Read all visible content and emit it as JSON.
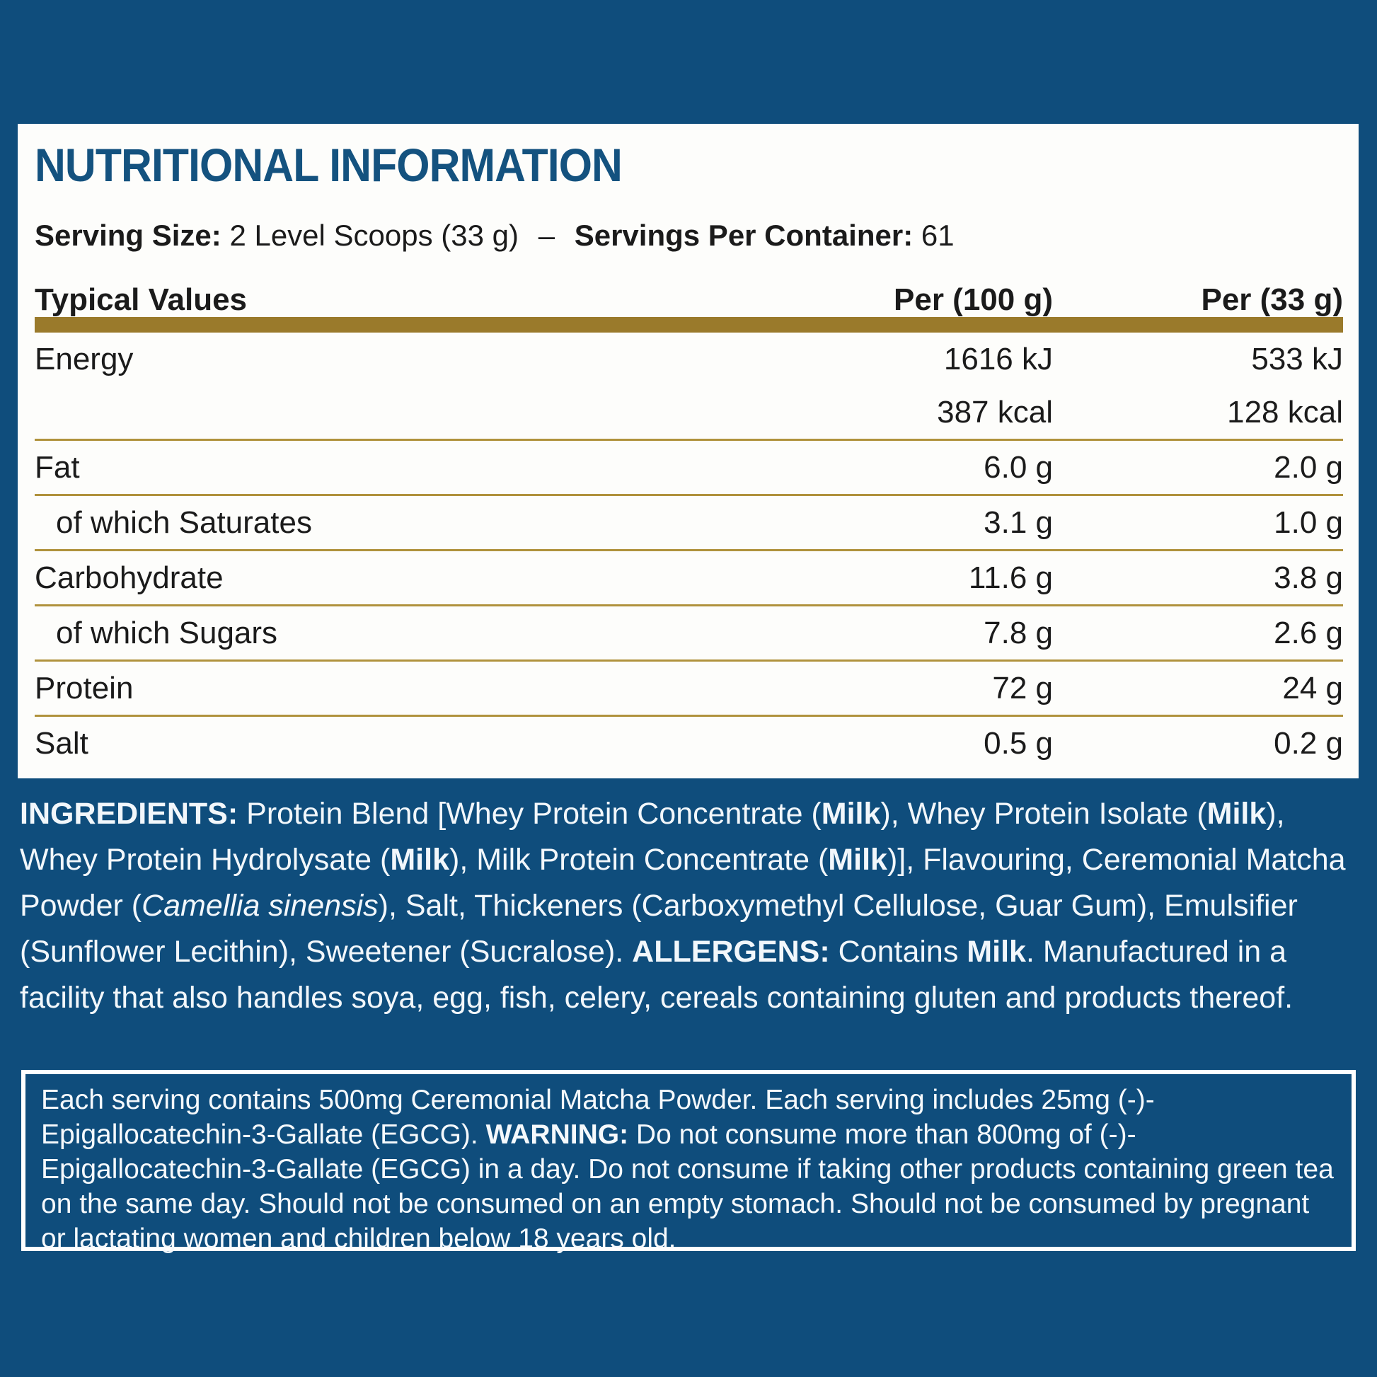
{
  "colors": {
    "page_background": "#0F4D7C",
    "panel_background": "#FDFDFB",
    "heading_blue": "#14527F",
    "gold_bar": "#9A7A2B",
    "gold_rule": "#B0923C",
    "text_dark": "#1B1B1B",
    "text_light": "#F2F7FB"
  },
  "nutrition_panel": {
    "title": "NUTRITIONAL INFORMATION",
    "serving_line": {
      "serving_size_label": "Serving Size:",
      "serving_size_value": "2 Level Scoops (33 g)",
      "dash": "–",
      "servings_label": "Servings Per Container:",
      "servings_value": "61"
    },
    "table": {
      "header": {
        "col_label": "Typical Values",
        "col_per_100": "Per (100 g)",
        "col_per_33": "Per (33 g)"
      },
      "rows": [
        {
          "label": "Energy",
          "per_100": "1616 kJ",
          "per_33": "533 kJ",
          "indent": false,
          "separator_after": false
        },
        {
          "label": "",
          "per_100": "387 kcal",
          "per_33": "128 kcal",
          "indent": false,
          "separator_after": true
        },
        {
          "label": "Fat",
          "per_100": "6.0 g",
          "per_33": "2.0 g",
          "indent": false,
          "separator_after": true
        },
        {
          "label": "of which Saturates",
          "per_100": "3.1 g",
          "per_33": "1.0 g",
          "indent": true,
          "separator_after": true
        },
        {
          "label": "Carbohydrate",
          "per_100": "11.6 g",
          "per_33": "3.8 g",
          "indent": false,
          "separator_after": true
        },
        {
          "label": "of which Sugars",
          "per_100": "7.8 g",
          "per_33": "2.6 g",
          "indent": true,
          "separator_after": true
        },
        {
          "label": "Protein",
          "per_100": "72 g",
          "per_33": "24 g",
          "indent": false,
          "separator_after": true
        },
        {
          "label": "Salt",
          "per_100": "0.5 g",
          "per_33": "0.2 g",
          "indent": false,
          "separator_after": false
        }
      ]
    }
  },
  "ingredients": {
    "segments": [
      {
        "text": "INGREDIENTS: ",
        "bold": true
      },
      {
        "text": "Protein Blend [Whey Protein Concentrate (",
        "bold": false
      },
      {
        "text": "Milk",
        "bold": true
      },
      {
        "text": "), Whey Protein Isolate (",
        "bold": false
      },
      {
        "text": "Milk",
        "bold": true
      },
      {
        "text": "), Whey Protein Hydrolysate (",
        "bold": false
      },
      {
        "text": "Milk",
        "bold": true
      },
      {
        "text": "), Milk Protein Concentrate (",
        "bold": false
      },
      {
        "text": "Milk",
        "bold": true
      },
      {
        "text": ")], Flavouring, Ceremonial Matcha Powder (",
        "bold": false
      },
      {
        "text": "Camellia sinensis",
        "italic": true
      },
      {
        "text": "), Salt, Thickeners (Carboxymethyl Cellulose, Guar Gum), Emulsifier (Sunflower Lecithin), Sweetener (Sucralose). ",
        "bold": false
      },
      {
        "text": "ALLERGENS: ",
        "bold": true
      },
      {
        "text": "Contains ",
        "bold": false
      },
      {
        "text": "Milk",
        "bold": true
      },
      {
        "text": ". Manufactured in a facility that also handles soya, egg, fish, celery, cereals containing gluten and products thereof.",
        "bold": false
      }
    ]
  },
  "matcha_warning_box": {
    "segments": [
      {
        "text": "Each serving contains 500mg Ceremonial Matcha Powder. Each serving includes 25mg (-)-Epigallocatechin-3-Gallate (EGCG). ",
        "bold": false
      },
      {
        "text": "WARNING: ",
        "bold": true
      },
      {
        "text": "Do not consume more than 800mg of (-)-Epigallocatechin-3-Gallate (EGCG) in a day. Do not consume if taking other products containing green tea on the same day. Should not be consumed on an empty stomach. Should not be consumed by pregnant or lactating women and children below 18 years old.",
        "bold": false
      }
    ]
  }
}
